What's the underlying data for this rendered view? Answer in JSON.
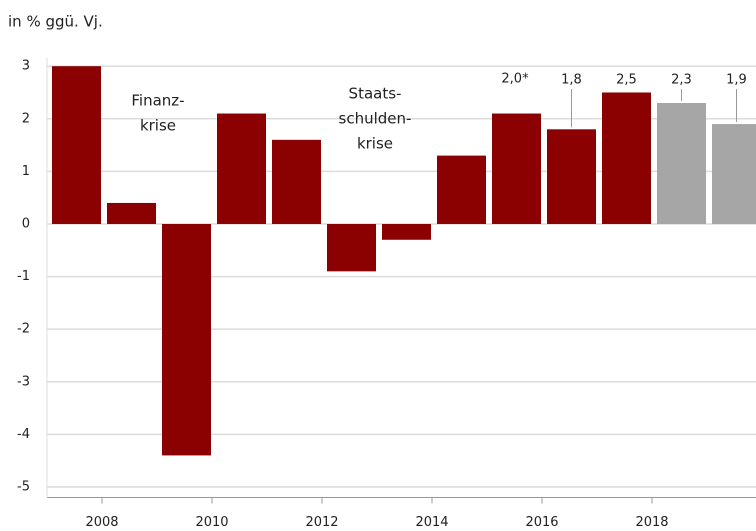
{
  "chart_data": {
    "type": "bar",
    "title": "in % ggü. Vj.",
    "categories": [
      null,
      "2008",
      null,
      "2010",
      null,
      "2012",
      null,
      "2014",
      null,
      "2016",
      null,
      "2018",
      null
    ],
    "values": [
      3.0,
      0.4,
      -4.4,
      2.1,
      1.6,
      -0.9,
      -0.3,
      1.3,
      2.1,
      1.8,
      2.5,
      2.3,
      1.9
    ],
    "value_labels": [
      null,
      null,
      null,
      null,
      null,
      null,
      null,
      null,
      null,
      "1,8",
      "2,5",
      "2,3",
      "1,9"
    ],
    "colors": [
      "#8b0000",
      "#8b0000",
      "#8b0000",
      "#8b0000",
      "#8b0000",
      "#8b0000",
      "#8b0000",
      "#8b0000",
      "#8b0000",
      "#8b0000",
      "#8b0000",
      "#a6a6a6",
      "#a6a6a6"
    ],
    "ylim": [
      -5.2,
      3.15
    ],
    "yticks": [
      -5,
      -4,
      -3,
      -2,
      -1,
      0,
      1,
      2,
      3
    ],
    "grid": true,
    "annotations": [
      {
        "lines": [
          "Finanz-",
          "krise"
        ]
      },
      {
        "lines": [
          "Staats-",
          "schulden-",
          "krise"
        ]
      },
      {
        "lines": [
          "2,0*"
        ]
      }
    ]
  }
}
